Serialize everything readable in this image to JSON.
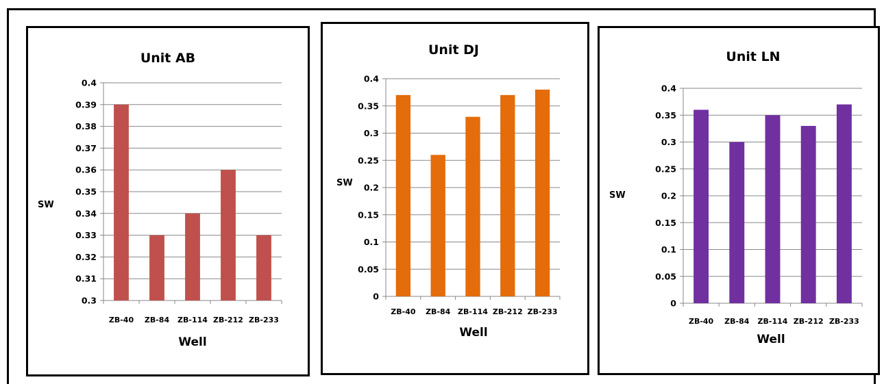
{
  "chart_data": [
    {
      "type": "bar",
      "title": "Unit AB",
      "xlabel": "Well",
      "ylabel": "SW",
      "categories": [
        "ZB-40",
        "ZB-84",
        "ZB-114",
        "ZB-212",
        "ZB-233"
      ],
      "values": [
        0.39,
        0.33,
        0.34,
        0.36,
        0.33
      ],
      "ylim": [
        0.3,
        0.4
      ],
      "yticks": [
        "0.3",
        "0.31",
        "0.32",
        "0.33",
        "0.34",
        "0.35",
        "0.36",
        "0.37",
        "0.38",
        "0.39",
        "0.4"
      ],
      "color": "#C0504D",
      "grid": true,
      "legend": "none"
    },
    {
      "type": "bar",
      "title": "Unit DJ",
      "xlabel": "Well",
      "ylabel": "SW",
      "categories": [
        "ZB-40",
        "ZB-84",
        "ZB-114",
        "ZB-212",
        "ZB-233"
      ],
      "values": [
        0.37,
        0.26,
        0.33,
        0.37,
        0.38
      ],
      "ylim": [
        0,
        0.4
      ],
      "yticks": [
        "0",
        "0.05",
        "0.1",
        "0.15",
        "0.2",
        "0.25",
        "0.3",
        "0.35",
        "0.4"
      ],
      "color": "#E46C0A",
      "grid": true,
      "legend": "none"
    },
    {
      "type": "bar",
      "title": "Unit LN",
      "xlabel": "Well",
      "ylabel": "SW",
      "categories": [
        "ZB-40",
        "ZB-84",
        "ZB-114",
        "ZB-212",
        "ZB-233"
      ],
      "values": [
        0.36,
        0.3,
        0.35,
        0.33,
        0.37
      ],
      "ylim": [
        0,
        0.4
      ],
      "yticks": [
        "0",
        "0.05",
        "0.1",
        "0.15",
        "0.2",
        "0.25",
        "0.3",
        "0.35",
        "0.4"
      ],
      "color": "#7030A0",
      "grid": true,
      "legend": "none"
    }
  ]
}
